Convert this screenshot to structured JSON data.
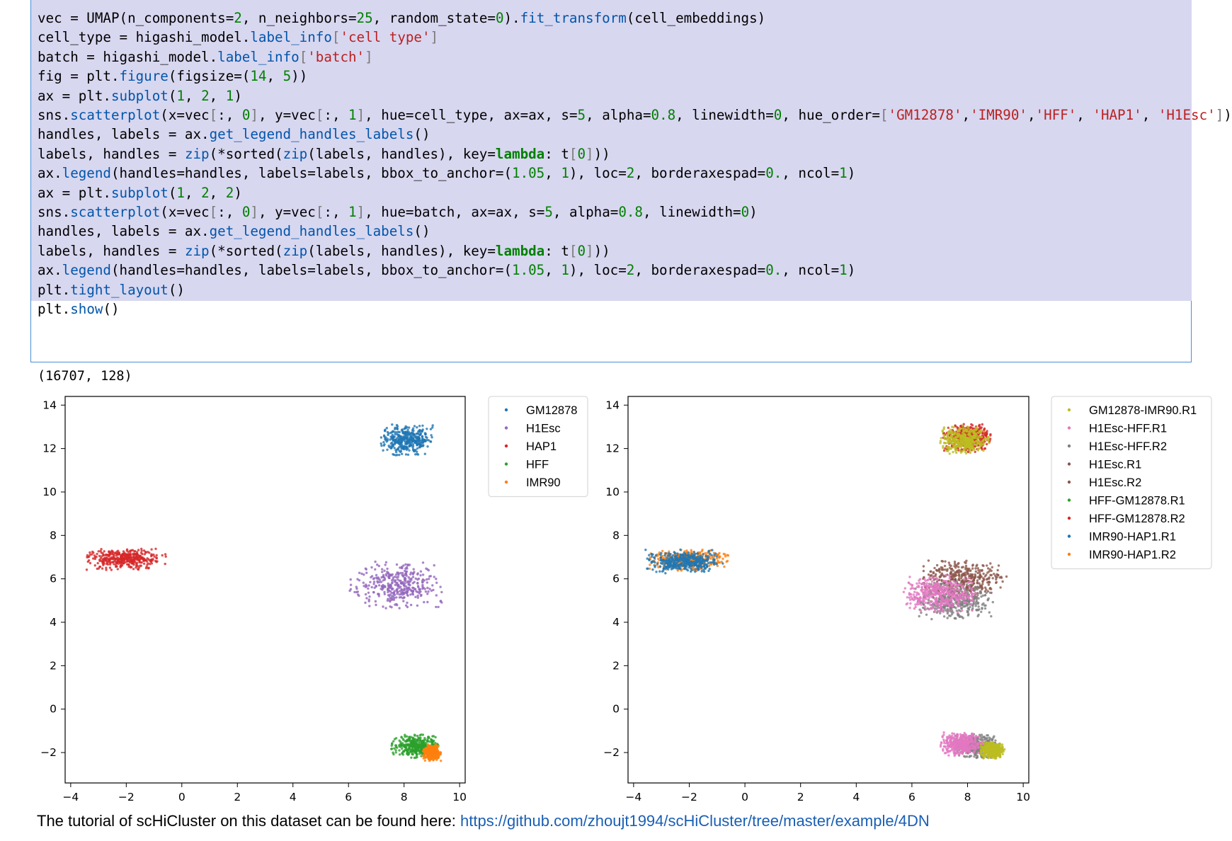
{
  "code_lines": [
    [
      [
        "",
        "vec = UMAP(n_components="
      ],
      [
        "num",
        "2"
      ],
      [
        "",
        ", n_neighbors="
      ],
      [
        "num",
        "25"
      ],
      [
        "",
        ", random_state="
      ],
      [
        "num",
        "0"
      ],
      [
        "",
        ")."
      ],
      [
        "fn",
        "fit_transform"
      ],
      [
        "",
        "(cell_embeddings)"
      ]
    ],
    [
      [
        "",
        "cell_type = higashi_model."
      ],
      [
        "fn",
        "label_info"
      ],
      [
        "br",
        "["
      ],
      [
        "str",
        "'cell type'"
      ],
      [
        "br",
        "]"
      ]
    ],
    [
      [
        "",
        "batch = higashi_model."
      ],
      [
        "fn",
        "label_info"
      ],
      [
        "br",
        "["
      ],
      [
        "str",
        "'batch'"
      ],
      [
        "br",
        "]"
      ]
    ],
    [
      [
        "",
        "fig = plt."
      ],
      [
        "fn",
        "figure"
      ],
      [
        "",
        "(figsize=("
      ],
      [
        "num",
        "14"
      ],
      [
        "",
        ", "
      ],
      [
        "num",
        "5"
      ],
      [
        "",
        "))"
      ]
    ],
    [
      [
        "",
        "ax = plt."
      ],
      [
        "fn",
        "subplot"
      ],
      [
        "",
        "("
      ],
      [
        "num",
        "1"
      ],
      [
        "",
        ", "
      ],
      [
        "num",
        "2"
      ],
      [
        "",
        ", "
      ],
      [
        "num",
        "1"
      ],
      [
        "",
        ")"
      ]
    ],
    [
      [
        "",
        "sns."
      ],
      [
        "fn",
        "scatterplot"
      ],
      [
        "",
        "(x=vec"
      ],
      [
        "br",
        "["
      ],
      [
        "",
        ":, "
      ],
      [
        "num",
        "0"
      ],
      [
        "br",
        "]"
      ],
      [
        "",
        ", y=vec"
      ],
      [
        "br",
        "["
      ],
      [
        "",
        ":, "
      ],
      [
        "num",
        "1"
      ],
      [
        "br",
        "]"
      ],
      [
        "",
        ", hue=cell_type, ax=ax, s="
      ],
      [
        "num",
        "5"
      ],
      [
        "",
        ", alpha="
      ],
      [
        "num",
        "0.8"
      ],
      [
        "",
        ", linewidth="
      ],
      [
        "num",
        "0"
      ],
      [
        "",
        ", hue_order="
      ],
      [
        "br",
        "["
      ],
      [
        "str",
        "'GM12878'"
      ],
      [
        "",
        ","
      ],
      [
        "str",
        "'IMR90'"
      ],
      [
        "",
        ","
      ],
      [
        "str",
        "'HFF'"
      ],
      [
        "",
        ", "
      ],
      [
        "str",
        "'HAP1'"
      ],
      [
        "",
        ", "
      ],
      [
        "str",
        "'H1Esc'"
      ],
      [
        "br",
        "]"
      ],
      [
        "",
        ")"
      ]
    ],
    [
      [
        "",
        "handles, labels = ax."
      ],
      [
        "fn",
        "get_legend_handles_labels"
      ],
      [
        "",
        "()"
      ]
    ],
    [
      [
        "",
        "labels, handles = "
      ],
      [
        "fn",
        "zip"
      ],
      [
        "",
        "(*sorted("
      ],
      [
        "fn",
        "zip"
      ],
      [
        "",
        "(labels, handles), key="
      ],
      [
        "kw",
        "lambda"
      ],
      [
        "",
        ": t"
      ],
      [
        "br",
        "["
      ],
      [
        "num",
        "0"
      ],
      [
        "br",
        "]"
      ],
      [
        "",
        "))"
      ]
    ],
    [
      [
        "",
        "ax."
      ],
      [
        "fn",
        "legend"
      ],
      [
        "",
        "(handles=handles, labels=labels, bbox_to_anchor=("
      ],
      [
        "num",
        "1.05"
      ],
      [
        "",
        ", "
      ],
      [
        "num",
        "1"
      ],
      [
        "",
        "), loc="
      ],
      [
        "num",
        "2"
      ],
      [
        "",
        ", borderaxespad="
      ],
      [
        "num",
        "0."
      ],
      [
        "",
        ", ncol="
      ],
      [
        "num",
        "1"
      ],
      [
        "",
        ")"
      ]
    ],
    [
      [
        "",
        "ax = plt."
      ],
      [
        "fn",
        "subplot"
      ],
      [
        "",
        "("
      ],
      [
        "num",
        "1"
      ],
      [
        "",
        ", "
      ],
      [
        "num",
        "2"
      ],
      [
        "",
        ", "
      ],
      [
        "num",
        "2"
      ],
      [
        "",
        ")"
      ]
    ],
    [
      [
        "",
        "sns."
      ],
      [
        "fn",
        "scatterplot"
      ],
      [
        "",
        "(x=vec"
      ],
      [
        "br",
        "["
      ],
      [
        "",
        ":, "
      ],
      [
        "num",
        "0"
      ],
      [
        "br",
        "]"
      ],
      [
        "",
        ", y=vec"
      ],
      [
        "br",
        "["
      ],
      [
        "",
        ":, "
      ],
      [
        "num",
        "1"
      ],
      [
        "br",
        "]"
      ],
      [
        "",
        ", hue=batch, ax=ax, s="
      ],
      [
        "num",
        "5"
      ],
      [
        "",
        ", alpha="
      ],
      [
        "num",
        "0.8"
      ],
      [
        "",
        ", linewidth="
      ],
      [
        "num",
        "0"
      ],
      [
        "",
        ")"
      ]
    ],
    [
      [
        "",
        "handles, labels = ax."
      ],
      [
        "fn",
        "get_legend_handles_labels"
      ],
      [
        "",
        "()"
      ]
    ],
    [
      [
        "",
        "labels, handles = "
      ],
      [
        "fn",
        "zip"
      ],
      [
        "",
        "(*sorted("
      ],
      [
        "fn",
        "zip"
      ],
      [
        "",
        "(labels, handles), key="
      ],
      [
        "kw",
        "lambda"
      ],
      [
        "",
        ": t"
      ],
      [
        "br",
        "["
      ],
      [
        "num",
        "0"
      ],
      [
        "br",
        "]"
      ],
      [
        "",
        "))"
      ]
    ],
    [
      [
        "",
        "ax."
      ],
      [
        "fn",
        "legend"
      ],
      [
        "",
        "(handles=handles, labels=labels, bbox_to_anchor=("
      ],
      [
        "num",
        "1.05"
      ],
      [
        "",
        ", "
      ],
      [
        "num",
        "1"
      ],
      [
        "",
        "), loc="
      ],
      [
        "num",
        "2"
      ],
      [
        "",
        ", borderaxespad="
      ],
      [
        "num",
        "0."
      ],
      [
        "",
        ", ncol="
      ],
      [
        "num",
        "1"
      ],
      [
        "",
        ")"
      ]
    ],
    [
      [
        "",
        "plt."
      ],
      [
        "fn",
        "tight_layout"
      ],
      [
        "",
        "()"
      ]
    ],
    [
      [
        "",
        "plt."
      ],
      [
        "fn",
        "show"
      ],
      [
        "",
        "()"
      ]
    ]
  ],
  "output_text": "(16707, 128)",
  "tutorial": {
    "text": "The tutorial of scHiCluster on this dataset can be found here: ",
    "link": "https://github.com/zhoujt1994/scHiCluster/tree/master/example/4DN"
  },
  "chart_data": [
    {
      "type": "scatter",
      "title": "",
      "xlabel": "",
      "ylabel": "",
      "xlim": [
        -4.2,
        10.2
      ],
      "ylim": [
        -3.4,
        14.4
      ],
      "xticks": [
        -4,
        -2,
        0,
        2,
        4,
        6,
        8,
        10
      ],
      "yticks": [
        -2,
        0,
        2,
        4,
        6,
        8,
        10,
        12,
        14
      ],
      "legend_position": "outside-right",
      "series": [
        {
          "name": "GM12878",
          "color": "#1f77b4"
        },
        {
          "name": "H1Esc",
          "color": "#9467bd"
        },
        {
          "name": "HAP1",
          "color": "#d62728"
        },
        {
          "name": "HFF",
          "color": "#2ca02c"
        },
        {
          "name": "IMR90",
          "color": "#ff7f0e"
        }
      ],
      "clusters": [
        {
          "series": "GM12878",
          "center": [
            8.1,
            12.4
          ],
          "spread": [
            0.9,
            0.65
          ]
        },
        {
          "series": "H1Esc",
          "center": [
            7.7,
            5.7
          ],
          "spread": [
            1.55,
            1.0
          ]
        },
        {
          "series": "HAP1",
          "center": [
            -2.0,
            6.9
          ],
          "spread": [
            1.3,
            0.45
          ]
        },
        {
          "series": "HFF",
          "center": [
            8.4,
            -1.7
          ],
          "spread": [
            0.8,
            0.5
          ]
        },
        {
          "series": "IMR90",
          "center": [
            9.0,
            -2.0
          ],
          "spread": [
            0.3,
            0.35
          ]
        }
      ]
    },
    {
      "type": "scatter",
      "title": "",
      "xlabel": "",
      "ylabel": "",
      "xlim": [
        -4.2,
        10.2
      ],
      "ylim": [
        -3.4,
        14.4
      ],
      "xticks": [
        -4,
        -2,
        0,
        2,
        4,
        6,
        8,
        10
      ],
      "yticks": [
        -2,
        0,
        2,
        4,
        6,
        8,
        10,
        12,
        14
      ],
      "legend_position": "outside-right",
      "series": [
        {
          "name": "GM12878-IMR90.R1",
          "color": "#bcbd22"
        },
        {
          "name": "H1Esc-HFF.R1",
          "color": "#e377c2"
        },
        {
          "name": "H1Esc-HFF.R2",
          "color": "#7f7f7f"
        },
        {
          "name": "H1Esc.R1",
          "color": "#8c564b"
        },
        {
          "name": "H1Esc.R2",
          "color": "#8c564b"
        },
        {
          "name": "HFF-GM12878.R1",
          "color": "#2ca02c"
        },
        {
          "name": "HFF-GM12878.R2",
          "color": "#d62728"
        },
        {
          "name": "IMR90-HAP1.R1",
          "color": "#1f77b4"
        },
        {
          "name": "IMR90-HAP1.R2",
          "color": "#ff7f0e"
        }
      ],
      "clusters": [
        {
          "series": "HFF-GM12878.R2",
          "center": [
            8.0,
            12.5
          ],
          "spread": [
            0.8,
            0.6
          ]
        },
        {
          "series": "GM12878-IMR90.R1",
          "center": [
            7.9,
            12.4
          ],
          "spread": [
            0.8,
            0.6
          ]
        },
        {
          "series": "H1Esc.R1",
          "center": [
            7.9,
            6.0
          ],
          "spread": [
            1.4,
            0.8
          ]
        },
        {
          "series": "H1Esc-HFF.R2",
          "center": [
            7.5,
            5.0
          ],
          "spread": [
            1.3,
            0.8
          ]
        },
        {
          "series": "H1Esc-HFF.R1",
          "center": [
            7.0,
            5.3
          ],
          "spread": [
            1.2,
            0.8
          ]
        },
        {
          "series": "IMR90-HAP1.R2",
          "center": [
            -2.0,
            6.85
          ],
          "spread": [
            1.3,
            0.45
          ]
        },
        {
          "series": "IMR90-HAP1.R1",
          "center": [
            -2.2,
            6.8
          ],
          "spread": [
            1.3,
            0.5
          ]
        },
        {
          "series": "H1Esc-HFF.R2",
          "center": [
            8.3,
            -1.7
          ],
          "spread": [
            0.8,
            0.5
          ]
        },
        {
          "series": "H1Esc-HFF.R1",
          "center": [
            7.8,
            -1.6
          ],
          "spread": [
            0.7,
            0.5
          ]
        },
        {
          "series": "GM12878-IMR90.R1",
          "center": [
            8.9,
            -1.9
          ],
          "spread": [
            0.4,
            0.35
          ]
        }
      ]
    }
  ]
}
